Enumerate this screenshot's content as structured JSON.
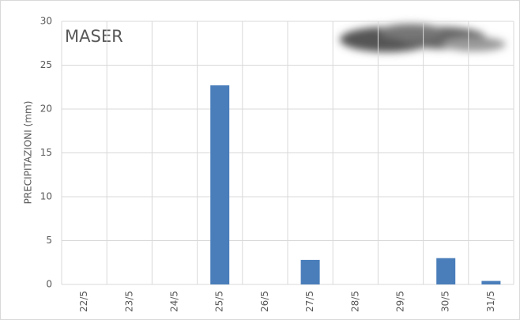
{
  "chart_data": {
    "type": "bar",
    "title": "MASER",
    "y_label": "PRECIPITAZIONI (mm)",
    "categories": [
      "22/5",
      "23/5",
      "24/5",
      "25/5",
      "26/5",
      "27/5",
      "28/5",
      "29/5",
      "30/5",
      "31/5"
    ],
    "values": [
      0,
      0,
      0,
      22.7,
      0,
      2.8,
      0,
      0,
      3.0,
      0.4
    ],
    "color": "#4a7ebb",
    "ylim": [
      0,
      30
    ],
    "yticks": [
      0,
      5,
      10,
      15,
      20,
      25,
      30
    ],
    "grid": true
  }
}
